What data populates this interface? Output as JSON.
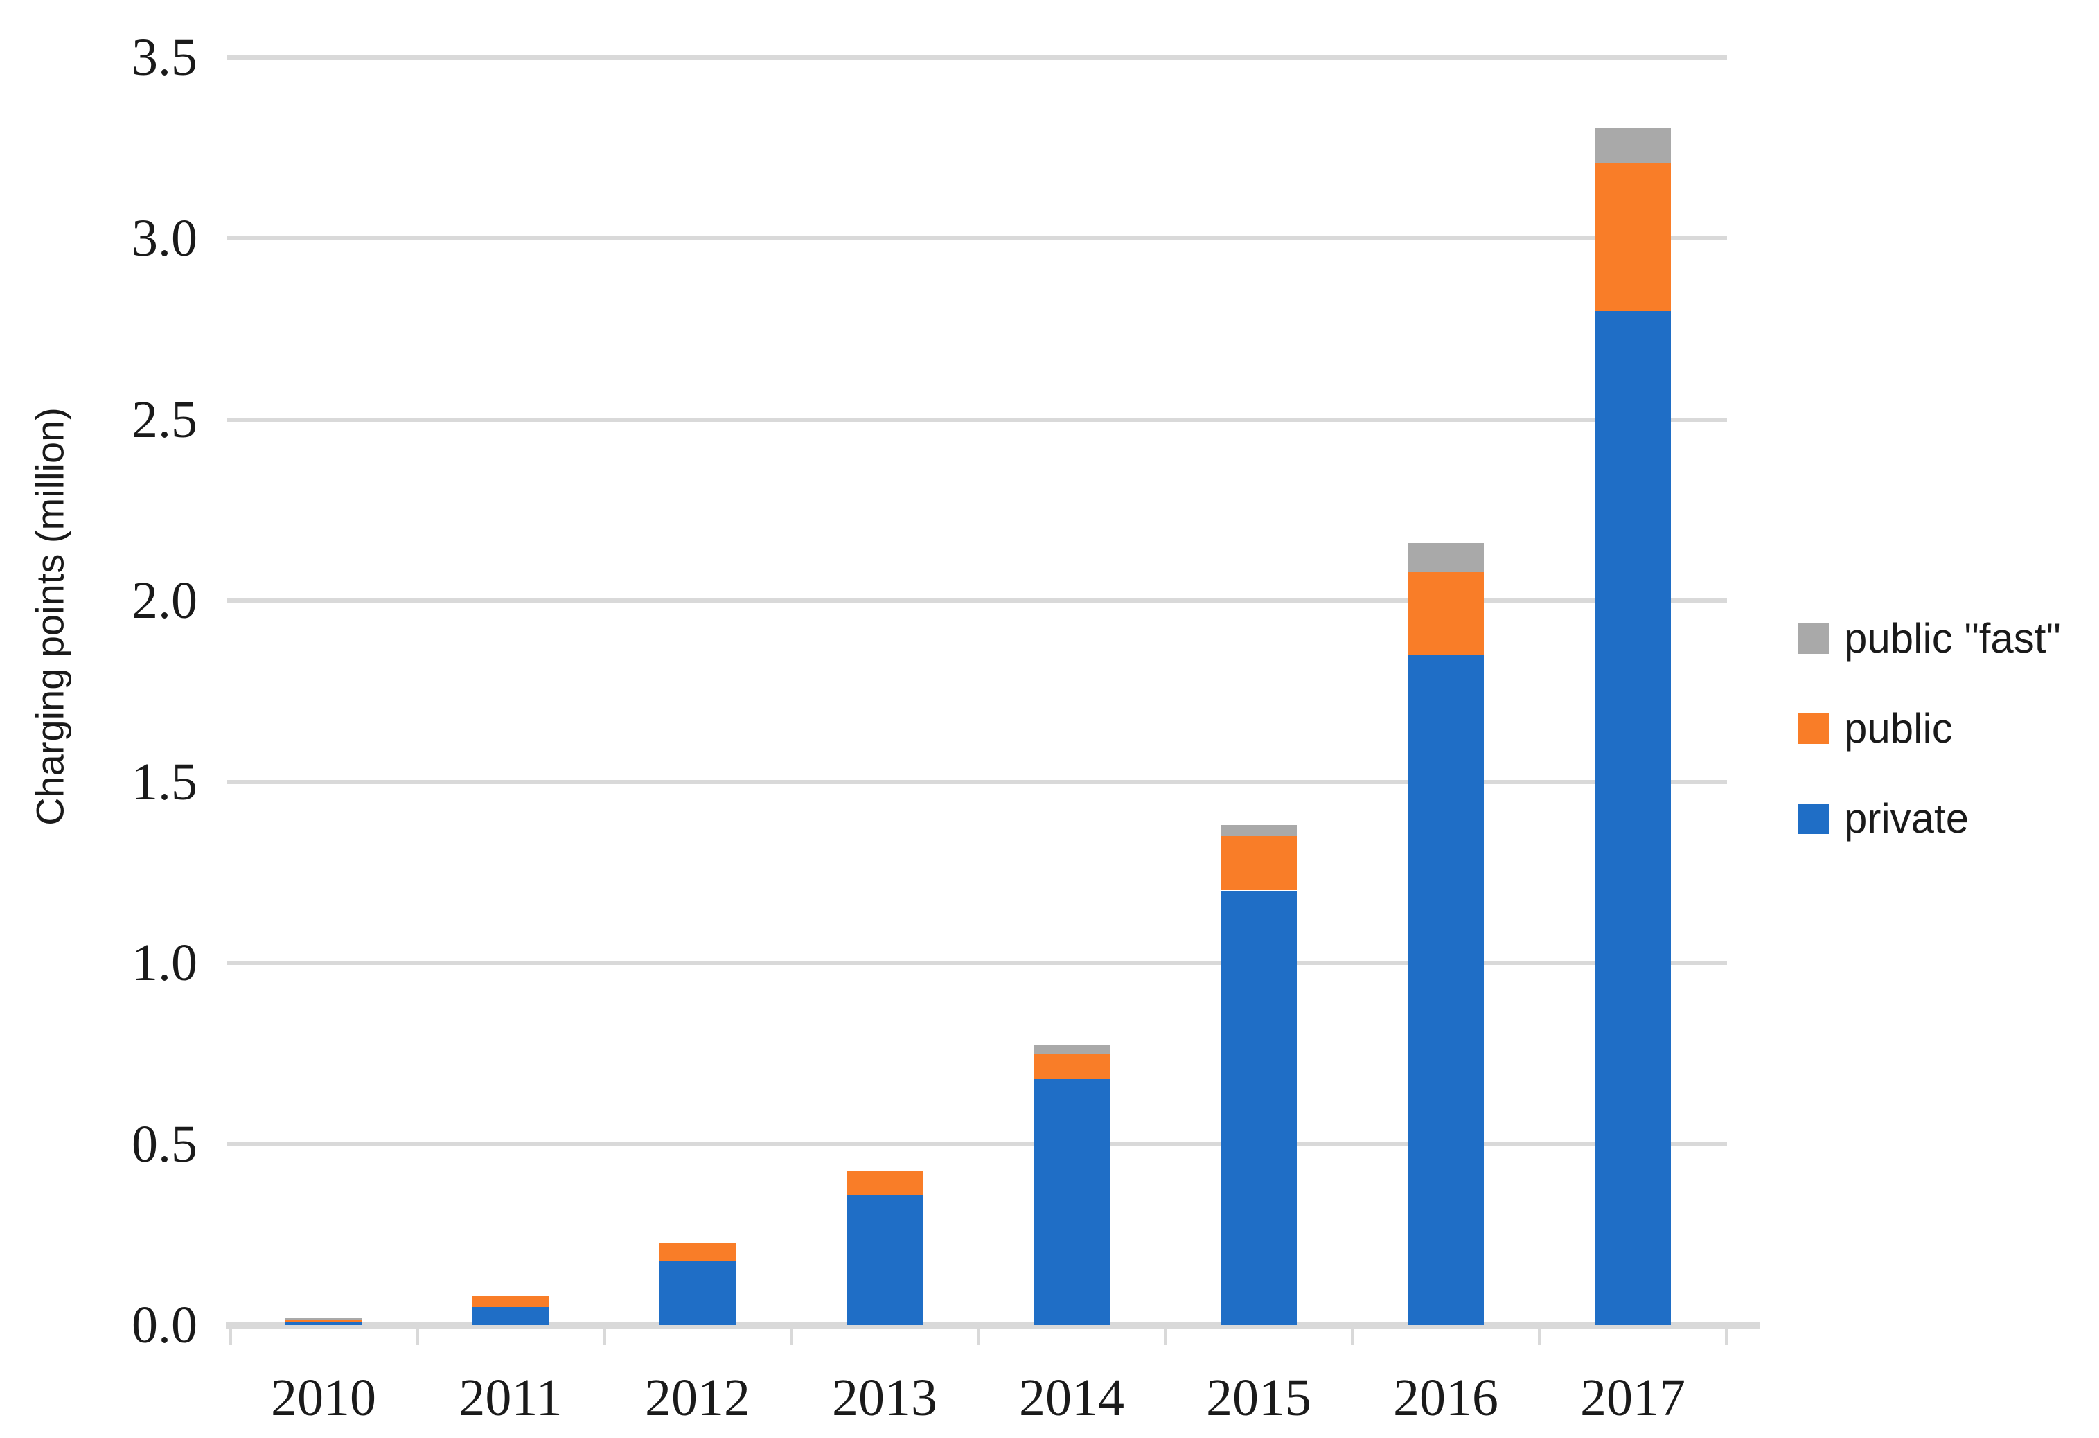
{
  "chart_data": {
    "type": "bar",
    "stacked": true,
    "title": "",
    "xlabel": "",
    "ylabel": "Charging points (million)",
    "categories": [
      "2010",
      "2011",
      "2012",
      "2013",
      "2014",
      "2015",
      "2016",
      "2017"
    ],
    "series": [
      {
        "name": "private",
        "color": "#1f6ec6",
        "values": [
          0.01,
          0.05,
          0.175,
          0.36,
          0.68,
          1.2,
          1.85,
          2.8
        ]
      },
      {
        "name": "public",
        "color": "#f97d28",
        "values": [
          0.007,
          0.03,
          0.05,
          0.065,
          0.07,
          0.15,
          0.23,
          0.41
        ]
      },
      {
        "name": "public \"fast\"",
        "color": "#a9a9a9",
        "values": [
          0.003,
          0.0,
          0.0,
          0.0,
          0.025,
          0.03,
          0.08,
          0.095
        ]
      }
    ],
    "ylim": [
      0,
      3.5
    ],
    "ytick_step": 0.5,
    "yticks": [
      "0.0",
      "0.5",
      "1.0",
      "1.5",
      "2.0",
      "2.5",
      "3.0",
      "3.5"
    ],
    "grid": true,
    "legend_position": "right"
  },
  "legend": {
    "items": [
      {
        "label": "public \"fast\"",
        "color": "#a9a9a9"
      },
      {
        "label": "public",
        "color": "#f97d28"
      },
      {
        "label": "private",
        "color": "#1f6ec6"
      }
    ]
  },
  "colors": {
    "gridline": "#d9d9d9",
    "axis_line": "#d9d9d9",
    "text": "#1a1a1a"
  }
}
